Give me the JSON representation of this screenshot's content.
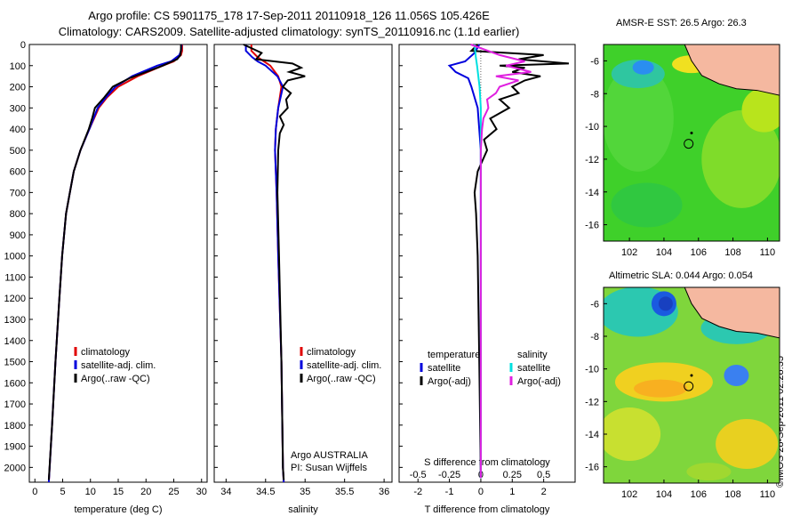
{
  "header": {
    "line1": "Argo profile: CS 5901175_178 17-Sep-2011 20110918_126 11.056S 105.426E",
    "line2": "Climatology: CARS2009. Satellite-adjusted climatology: synTS_20110916.nc (1.1d earlier)"
  },
  "footer": {
    "stamp": "©IMOS 28-Sep-2011 02:28:35"
  },
  "colors": {
    "climatology": "#e00000",
    "satellite": "#0000dd",
    "argo": "#000000",
    "sal_satellite": "#00e0e0",
    "sal_argo": "#e020e0"
  },
  "chart_data": [
    {
      "id": "temperature",
      "type": "line",
      "xlabel": "temperature (deg C)",
      "xlim": [
        -1,
        31
      ],
      "xticks": [
        0,
        5,
        10,
        15,
        20,
        25,
        30
      ],
      "ylim": [
        0,
        2070
      ],
      "yticks": [
        0,
        100,
        200,
        300,
        400,
        500,
        600,
        700,
        800,
        900,
        1000,
        1100,
        1200,
        1300,
        1400,
        1500,
        1600,
        1700,
        1800,
        1900,
        2000
      ],
      "legend": [
        "climatology",
        "satellite-adj. clim.",
        "Argo(..raw -QC)"
      ],
      "series": [
        {
          "name": "climatology",
          "color": "#e00000",
          "depth": [
            0,
            30,
            50,
            80,
            100,
            150,
            200,
            250,
            300,
            400,
            500,
            600,
            700,
            800,
            1000,
            1200,
            1500,
            1800,
            2070
          ],
          "values": [
            26.5,
            26.5,
            26.3,
            25.0,
            23.0,
            18.5,
            15.0,
            13.0,
            11.5,
            9.8,
            8.2,
            7.0,
            6.3,
            5.6,
            4.9,
            4.4,
            3.7,
            3.1,
            2.5
          ]
        },
        {
          "name": "satellite-adj. clim.",
          "color": "#0000dd",
          "depth": [
            0,
            30,
            50,
            80,
            100,
            150,
            200,
            250,
            300,
            400,
            500,
            600,
            700,
            800,
            1000,
            1200,
            1500,
            1800,
            2070
          ],
          "values": [
            26.4,
            26.3,
            26.0,
            24.5,
            22.0,
            17.5,
            14.5,
            12.8,
            11.3,
            9.8,
            8.2,
            7.0,
            6.3,
            5.6,
            4.9,
            4.4,
            3.7,
            3.1,
            2.5
          ]
        },
        {
          "name": "Argo(..raw -QC)",
          "color": "#000000",
          "depth": [
            0,
            20,
            50,
            70,
            100,
            130,
            160,
            200,
            250,
            300,
            350,
            400,
            500,
            600,
            700,
            800,
            1000,
            1200,
            1500,
            1800,
            2060
          ],
          "values": [
            26.3,
            26.3,
            26.2,
            25.6,
            23.0,
            20.0,
            17.0,
            14.0,
            12.5,
            10.8,
            10.3,
            9.7,
            8.2,
            7.0,
            6.3,
            5.6,
            4.9,
            4.4,
            3.7,
            3.1,
            2.5
          ]
        }
      ]
    },
    {
      "id": "salinity",
      "type": "line",
      "xlabel": "salinity",
      "xlim": [
        33.85,
        36.1
      ],
      "xticks": [
        34,
        34.5,
        35,
        35.5,
        36
      ],
      "ylim": [
        0,
        2070
      ],
      "legend": [
        "climatology",
        "satellite-adj. clim.",
        "Argo(..raw -QC)"
      ],
      "annotation": [
        "Argo AUSTRALIA",
        "PI: Susan Wijffels"
      ],
      "series": [
        {
          "name": "climatology",
          "color": "#e00000",
          "depth": [
            0,
            30,
            60,
            80,
            100,
            150,
            200,
            300,
            400,
            500,
            700,
            1000,
            1500,
            2000,
            2070
          ],
          "values": [
            34.32,
            34.32,
            34.4,
            34.48,
            34.56,
            34.66,
            34.7,
            34.66,
            34.63,
            34.62,
            34.64,
            34.66,
            34.7,
            34.72,
            34.73
          ]
        },
        {
          "name": "satellite-adj. clim.",
          "color": "#0000dd",
          "depth": [
            0,
            30,
            60,
            80,
            100,
            150,
            200,
            300,
            400,
            500,
            700,
            1000,
            1500,
            2000,
            2070
          ],
          "values": [
            34.25,
            34.25,
            34.33,
            34.4,
            34.5,
            34.65,
            34.72,
            34.66,
            34.63,
            34.62,
            34.64,
            34.66,
            34.7,
            34.72,
            34.73
          ]
        },
        {
          "name": "Argo(..raw -QC)",
          "color": "#000000",
          "depth": [
            0,
            40,
            70,
            90,
            110,
            130,
            150,
            170,
            200,
            230,
            260,
            300,
            340,
            380,
            420,
            500,
            700,
            1000,
            1500,
            2000,
            2060
          ],
          "values": [
            34.22,
            34.45,
            34.38,
            34.84,
            34.95,
            34.8,
            35.0,
            34.78,
            34.72,
            34.82,
            34.76,
            34.78,
            34.68,
            34.73,
            34.68,
            34.66,
            34.65,
            34.67,
            34.7,
            34.72,
            34.73
          ]
        }
      ]
    },
    {
      "id": "differences",
      "type": "line",
      "xlabel_bottom": "T difference from climatology",
      "xlabel_top": "S difference from climatology",
      "xlim_T": [
        -2.6,
        3.0
      ],
      "xticks_T": [
        -2,
        -1,
        0,
        1,
        2
      ],
      "xticks_S": [
        -0.5,
        -0.25,
        0,
        0.25,
        0.5
      ],
      "s_scale": 4,
      "ylim": [
        0,
        2070
      ],
      "legend_temperature": [
        "temperature",
        "satellite",
        "Argo(-adj)"
      ],
      "legend_salinity": [
        "salinity",
        "satellite",
        "Argo(-adj)"
      ],
      "series": [
        {
          "name": "temperature satellite",
          "color": "#0000dd",
          "kind": "T",
          "depth": [
            0,
            40,
            80,
            100,
            130,
            160,
            200,
            300,
            500,
            1000,
            2050
          ],
          "values": [
            -0.05,
            -0.2,
            -0.5,
            -1.0,
            -0.8,
            -0.4,
            -0.3,
            -0.1,
            0.0,
            0.0,
            0.0
          ]
        },
        {
          "name": "temperature Argo(-adj)",
          "color": "#000000",
          "kind": "T",
          "depth": [
            0,
            30,
            50,
            70,
            90,
            100,
            110,
            130,
            150,
            170,
            200,
            230,
            260,
            300,
            350,
            400,
            450,
            500,
            600,
            700,
            800,
            1000,
            1500,
            2050
          ],
          "values": [
            -0.1,
            -0.3,
            2.0,
            1.2,
            2.8,
            0.6,
            1.4,
            1.0,
            1.9,
            1.4,
            1.0,
            1.2,
            0.6,
            0.9,
            0.3,
            0.5,
            0.1,
            0.2,
            -0.1,
            -0.2,
            -0.15,
            -0.1,
            -0.05,
            0.0
          ]
        },
        {
          "name": "salinity satellite",
          "color": "#00e0e0",
          "kind": "S",
          "depth": [
            0,
            60,
            100,
            200,
            300,
            500,
            1000,
            2050
          ],
          "values": [
            -0.05,
            -0.04,
            -0.03,
            -0.01,
            0.0,
            0.0,
            0.0,
            0.0
          ]
        },
        {
          "name": "salinity Argo(-adj)",
          "color": "#e020e0",
          "kind": "S",
          "depth": [
            0,
            50,
            80,
            100,
            130,
            150,
            170,
            200,
            230,
            260,
            300,
            350,
            400,
            500,
            700,
            1000,
            2050
          ],
          "values": [
            -0.08,
            0.15,
            0.35,
            0.2,
            0.4,
            0.12,
            0.3,
            0.15,
            0.12,
            0.05,
            0.06,
            0.02,
            0.01,
            0.0,
            0.0,
            0.0,
            0.0
          ]
        }
      ]
    },
    {
      "id": "sst_map",
      "type": "heatmap",
      "title": "AMSR-E SST: 26.5 Argo: 26.3",
      "xlim": [
        100.5,
        110.7
      ],
      "ylim": [
        -17,
        -5
      ],
      "xticks": [
        102,
        104,
        106,
        108,
        110
      ],
      "yticks": [
        -6,
        -8,
        -10,
        -12,
        -14,
        -16
      ],
      "float_position": {
        "lon": 105.43,
        "lat": -11.06
      },
      "previous_position": {
        "lon": 105.6,
        "lat": -10.4
      }
    },
    {
      "id": "sla_map",
      "type": "heatmap",
      "title": "Altimetric SLA: 0.044 Argo: 0.054",
      "xlim": [
        100.5,
        110.7
      ],
      "ylim": [
        -17,
        -5
      ],
      "xticks": [
        102,
        104,
        106,
        108,
        110
      ],
      "yticks": [
        -6,
        -8,
        -10,
        -12,
        -14,
        -16
      ],
      "float_position": {
        "lon": 105.43,
        "lat": -11.06
      },
      "previous_position": {
        "lon": 105.6,
        "lat": -10.4
      }
    }
  ]
}
